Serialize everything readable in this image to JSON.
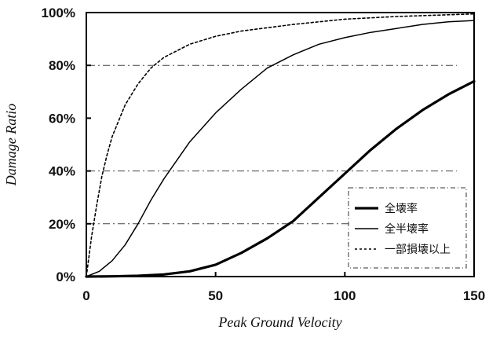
{
  "chart_data": {
    "type": "line",
    "title": "",
    "xlabel": "Peak Ground Velocity",
    "ylabel": "Damage Ratio",
    "xlim": [
      0,
      150
    ],
    "ylim": [
      0,
      100
    ],
    "x_ticks": [
      "0",
      "50",
      "100",
      "150"
    ],
    "y_ticks": [
      "0%",
      "20%",
      "40%",
      "60%",
      "80%",
      "100%"
    ],
    "gridlines_y": [
      20,
      40,
      80
    ],
    "legend_position": "bottom-right",
    "series": [
      {
        "name": "全壊率",
        "style": "solid-thick",
        "x": [
          0,
          10,
          20,
          30,
          40,
          50,
          60,
          70,
          80,
          90,
          100,
          110,
          120,
          130,
          140,
          150
        ],
        "y": [
          0,
          0.1,
          0.3,
          0.8,
          2,
          4.5,
          9,
          14.5,
          21,
          30,
          39,
          48,
          56,
          63,
          69,
          74
        ]
      },
      {
        "name": "全半壊率",
        "style": "solid-thin",
        "x": [
          0,
          5,
          10,
          15,
          20,
          25,
          30,
          40,
          50,
          60,
          70,
          80,
          90,
          100,
          110,
          120,
          130,
          140,
          150
        ],
        "y": [
          0,
          2,
          6,
          12,
          20,
          29,
          37,
          51,
          62,
          71,
          79,
          84,
          88,
          90.5,
          92.5,
          94,
          95.5,
          96.5,
          97
        ]
      },
      {
        "name": "一部損壊以上",
        "style": "dotted",
        "x": [
          0,
          2,
          4,
          6,
          8,
          10,
          15,
          20,
          25,
          30,
          40,
          50,
          60,
          80,
          100,
          120,
          150
        ],
        "y": [
          0,
          15,
          27,
          38,
          46,
          53,
          65,
          73,
          79,
          83,
          88,
          91,
          93,
          95.5,
          97.5,
          98.5,
          99.5
        ]
      }
    ]
  }
}
